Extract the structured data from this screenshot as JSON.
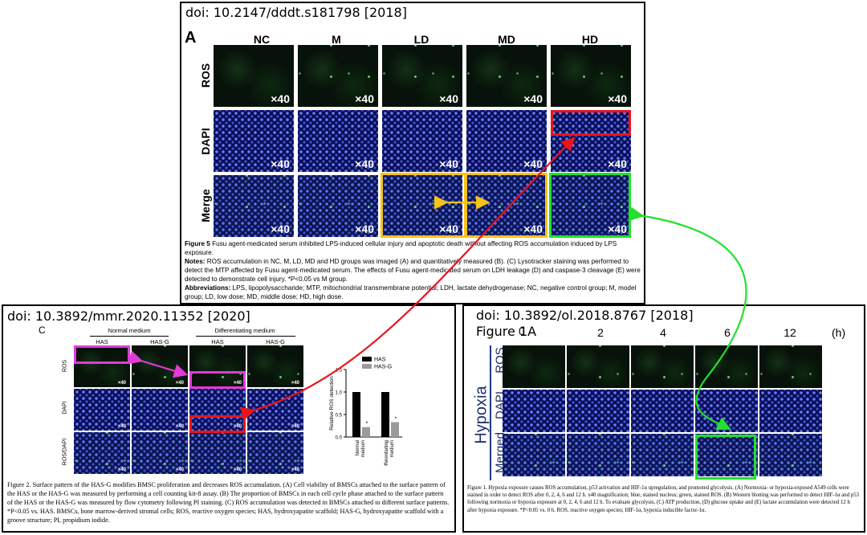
{
  "panel_top": {
    "doi": "doi: 10.2147/dddt.s181798 [2018]",
    "panel_letter": "A",
    "columns": [
      "NC",
      "M",
      "LD",
      "MD",
      "HD"
    ],
    "rows": [
      "ROS",
      "DAPI",
      "Merge"
    ],
    "magnification": "×40",
    "caption_title": "Figure 5",
    "caption_title_text": " Fusu agent-medicated serum inhibited LPS-induced cellular injury and apoptotic death without affecting ROS accumulation induced by LPS exposure.",
    "notes_label": "Notes:",
    "notes_text": " ROS accumulation in NC, M, LD, MD and HD groups was imaged (A) and quantitatively measured (B). (C) Lysotracker staining was performed to detect the MTP affected by Fusu agent-medicated serum. The effects of Fusu agent-medicated serum on LDH leakage (D) and caspase-3 cleavage (E) were detected to demonstrate cell injury. *P<0.05 vs M group.",
    "abbrev_label": "Abbreviations:",
    "abbrev_text": " LPS, lipopolysaccharide; MTP, mitochondrial transmembrane potential; LDH, lactate dehydrogenase; NC, negative control group; M, model group; LD, low dose; MD, middle dose; HD, high dose."
  },
  "panel_left": {
    "doi": "doi: 10.3892/mmr.2020.11352 [2020]",
    "panel_letter": "C",
    "group_normal": "Normal medium",
    "group_diff": "Differentiating medium",
    "columns": [
      "HAS",
      "HAS-G",
      "HAS",
      "HAS-G"
    ],
    "rows": [
      "ROS",
      "DAPI",
      "ROS/DAPI"
    ],
    "magnification": "×40",
    "chart_legend": [
      "HAS",
      "HAS-G"
    ],
    "chart_ylabel": "Relative ROS detection",
    "chart_categories": [
      "Normal medium",
      "Differentiating medium"
    ],
    "caption": "Figure 2. Surface pattern of the HAS-G modifies BMSC proliferation and decreases ROS accumulation. (A) Cell viability of BMSCs attached to the surface pattern of the HAS or the HAS-G was measured by performing a cell counting kit-8 assay. (B) The proportion of BMSCs in each cell cycle phase attached to the surface pattern of the HAS or the HAS-G was measured by flow cytometry following PI staining. (C) ROS accumulation was detected in BMSCs attached to different surface patterns. *P<0.05 vs. HAS. BMSCs, bone marrow-derived stromal cells; ROS, reactive oxygen species; HAS, hydroxyapatite scaffold; HAS-G, hydroxyapatite scaffold with a groove structure; PI, propidium iodide."
  },
  "panel_right": {
    "doi": "doi: 10.3892/ol.2018.8767 [2018]",
    "figure_label": "Figure 1A",
    "timepoints": [
      "0",
      "2",
      "4",
      "6",
      "12"
    ],
    "unit": "(h)",
    "condition": "Hypoxia",
    "rows": [
      "ROS",
      "DAPI",
      "Merged"
    ],
    "caption": "Figure 1. Hypoxia exposure causes ROS accumulation, p53 activation and HIF-1α upregulation, and promoted glycolysis. (A) Normoxia- or hypoxia-exposed A549 cells were stained in order to detect ROS after 0, 2, 4, 6 and 12 h. x40 magnification; blue, stained nucleus; green, stained ROS. (B) Western blotting was performed to detect HIF-1α and p53 following normoxia or hypoxia exposure at 0, 2, 4, 6 and 12 h. To evaluate glycolysis, (C) ATP production, (D) glucose uptake and (E) lactate accumulation were detected 12 h after hypoxia exposure. *P<0.05 vs. 0 h. ROS, reactive oxygen species; HIF-1α, hypoxia inducible factor-1α."
  },
  "chart_data": {
    "type": "bar",
    "categories": [
      "Normal medium",
      "Differentiating medium"
    ],
    "series": [
      {
        "name": "HAS",
        "values": [
          1.0,
          1.0
        ]
      },
      {
        "name": "HAS-G",
        "values": [
          0.22,
          0.33
        ]
      }
    ],
    "ylabel": "Relative ROS detection",
    "ylim": [
      0,
      1.5
    ],
    "yticks": [
      "1.5",
      "1.0",
      "0.5",
      "0.0"
    ],
    "legend": "top-right",
    "annotations": [
      "*",
      "*"
    ]
  },
  "colors": {
    "red": "#e8141c",
    "yellow": "#f7c21a",
    "green": "#22e02b",
    "magenta": "#e23ad8"
  }
}
